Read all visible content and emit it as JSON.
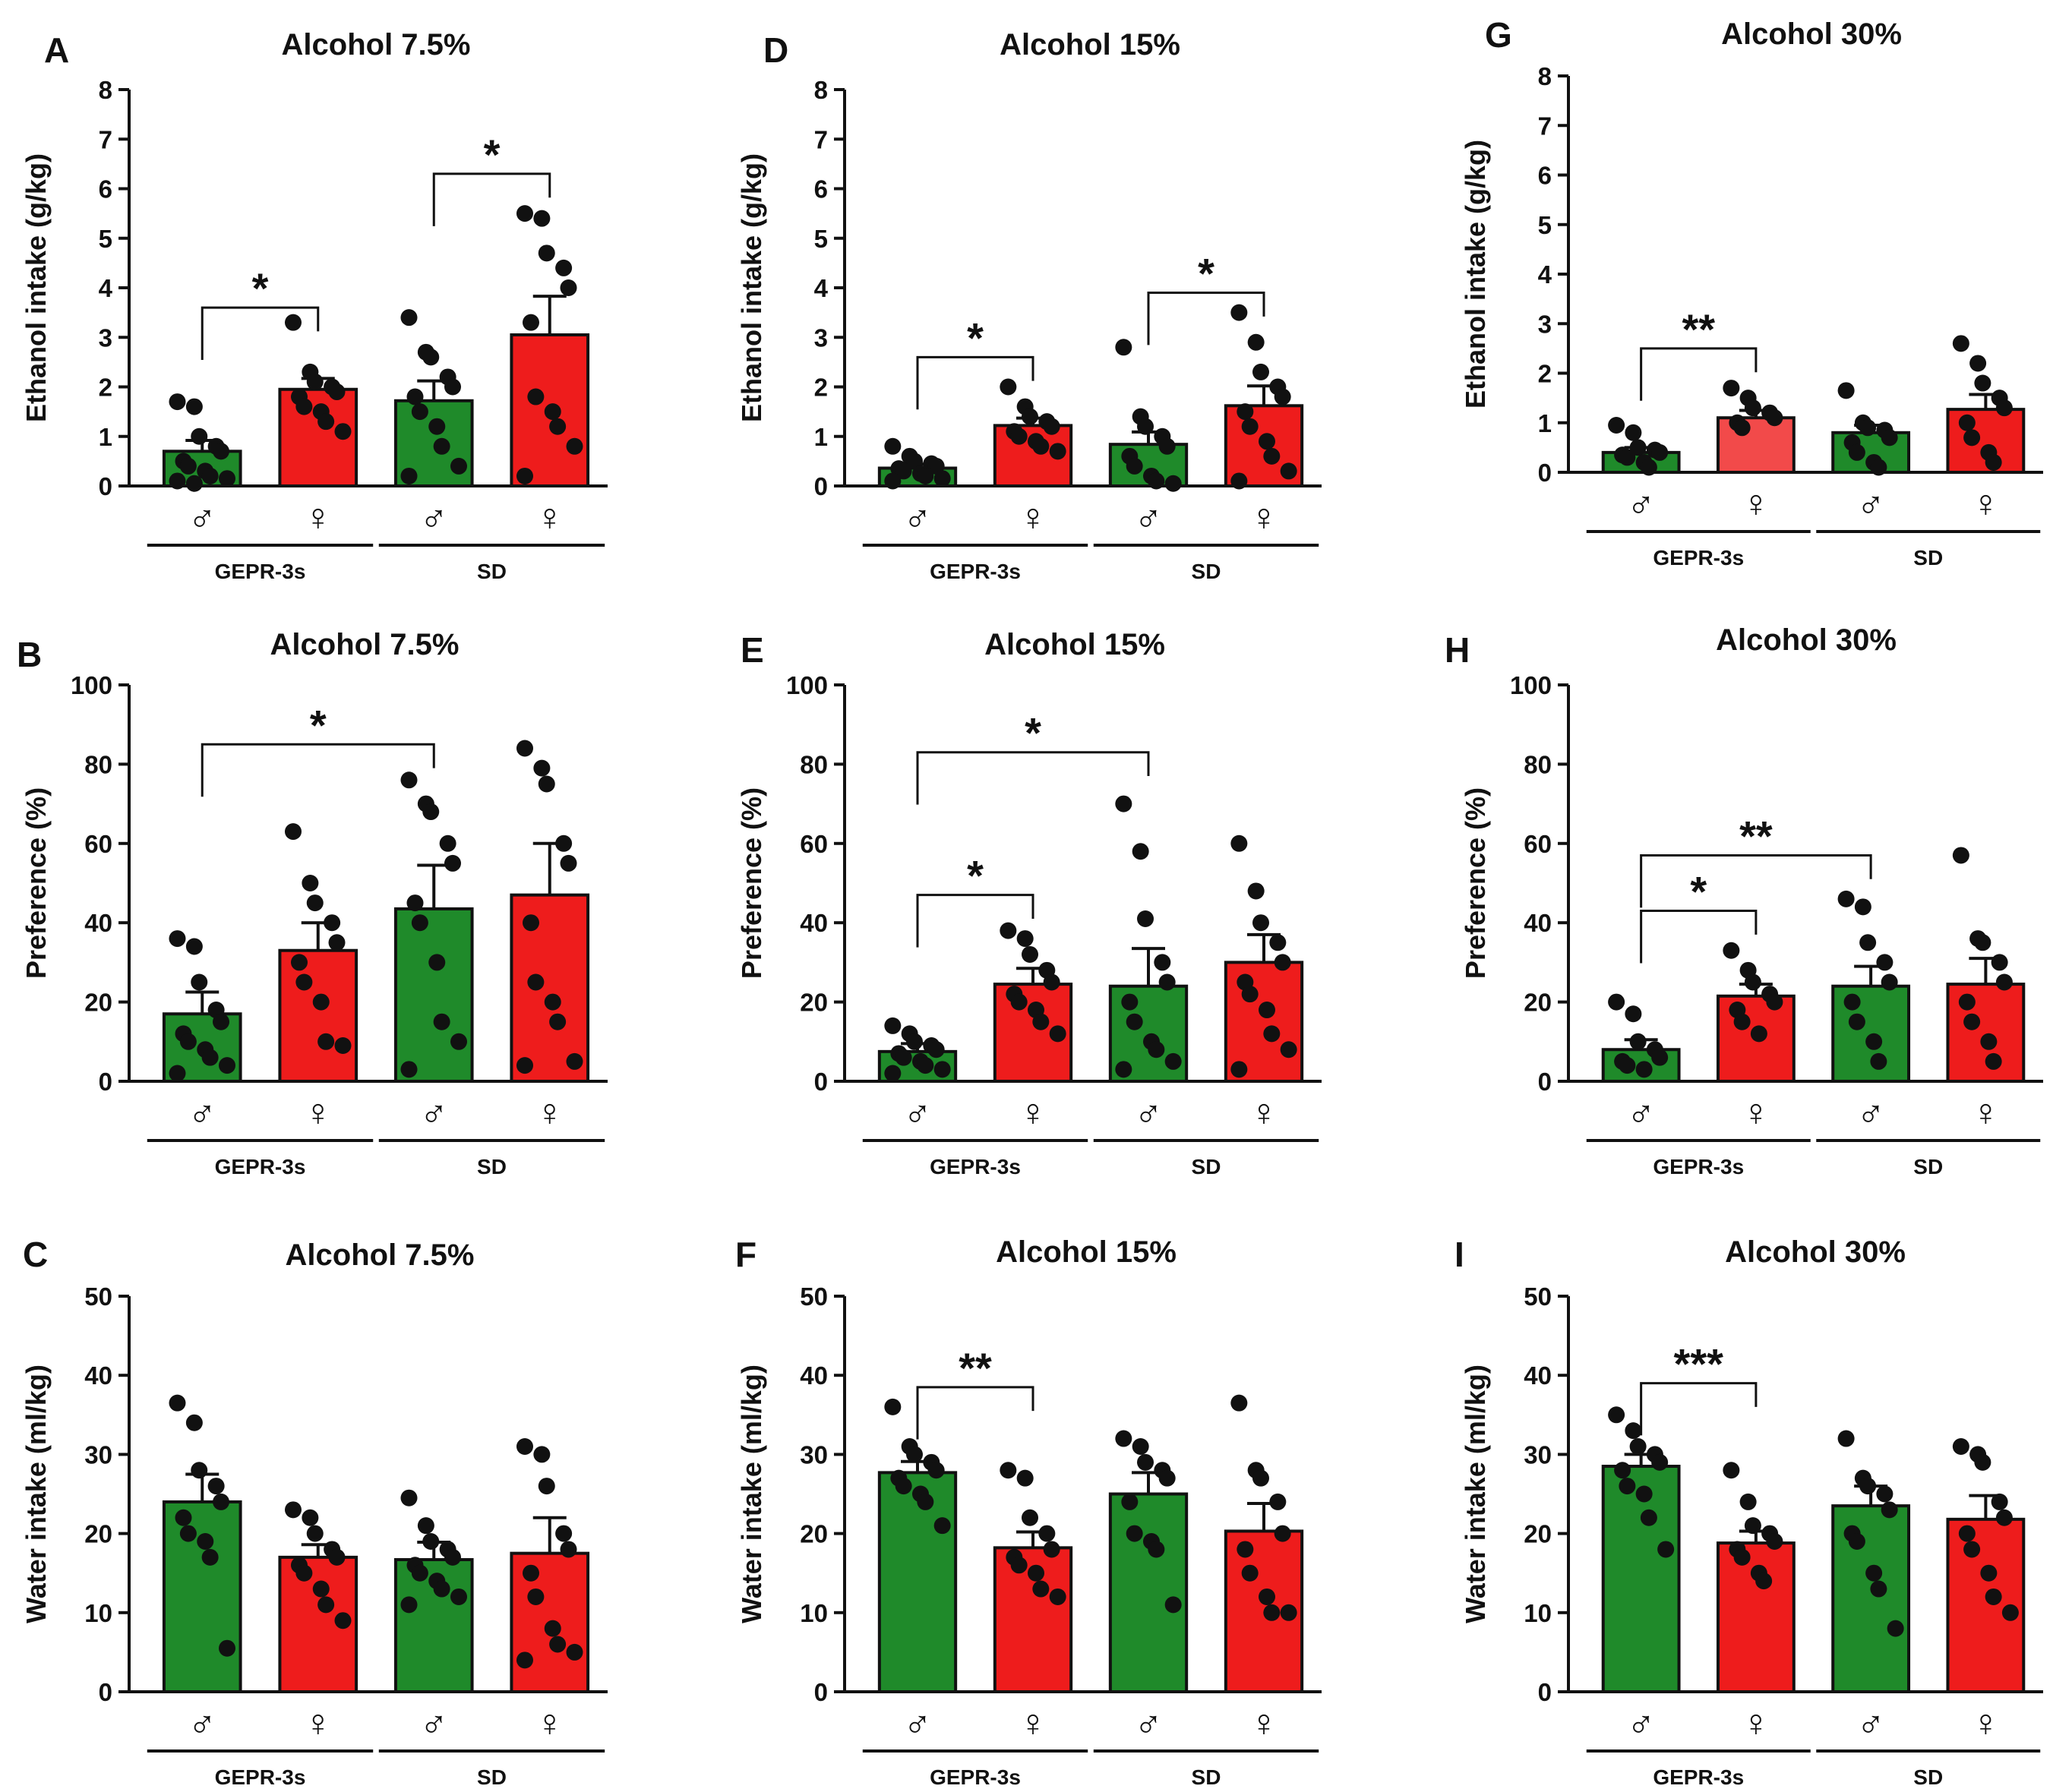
{
  "figure": {
    "symbols": {
      "male": "♂",
      "female": "♀"
    },
    "colors": {
      "male": "#1f8a2a",
      "female": "#ee1c1c",
      "female_light": "#f24a4a",
      "ink": "#111111"
    }
  },
  "chart_data": [
    {
      "id": "A",
      "type": "bar",
      "title": "Alcohol 7.5%",
      "ylabel": "Ethanol intake (g/kg)",
      "ylim": [
        0,
        8
      ],
      "yticks": [
        0,
        1,
        2,
        3,
        4,
        5,
        6,
        7,
        8
      ],
      "categories": [
        "♂",
        "♀",
        "♂",
        "♀"
      ],
      "groups": [
        "GEPR-3s",
        "SD"
      ],
      "values": [
        0.7,
        1.95,
        1.72,
        3.05
      ],
      "sem": [
        0.22,
        0.22,
        0.4,
        0.78
      ],
      "points": [
        [
          1.7,
          1.6,
          1.0,
          0.8,
          0.7,
          0.5,
          0.4,
          0.3,
          0.2,
          0.15,
          0.1,
          0.05
        ],
        [
          3.3,
          2.3,
          2.1,
          2.0,
          1.9,
          1.8,
          1.6,
          1.5,
          1.3,
          1.1
        ],
        [
          3.4,
          2.7,
          2.6,
          2.2,
          2.0,
          1.8,
          1.5,
          1.2,
          0.8,
          0.4,
          0.2
        ],
        [
          5.5,
          5.4,
          4.7,
          4.4,
          4.0,
          3.3,
          1.8,
          1.5,
          1.2,
          0.8,
          0.2
        ]
      ],
      "comparisons": [
        {
          "from": 0,
          "to": 1,
          "y": 3.6,
          "label": "*"
        },
        {
          "from": 2,
          "to": 3,
          "y": 6.3,
          "label": "*"
        }
      ]
    },
    {
      "id": "D",
      "type": "bar",
      "title": "Alcohol 15%",
      "ylabel": "Ethanol intake (g/kg)",
      "ylim": [
        0,
        8
      ],
      "yticks": [
        0,
        1,
        2,
        3,
        4,
        5,
        6,
        7,
        8
      ],
      "categories": [
        "♂",
        "♀",
        "♂",
        "♀"
      ],
      "groups": [
        "GEPR-3s",
        "SD"
      ],
      "values": [
        0.36,
        1.22,
        0.84,
        1.62
      ],
      "sem": [
        0.08,
        0.15,
        0.25,
        0.4
      ],
      "points": [
        [
          0.8,
          0.6,
          0.5,
          0.45,
          0.4,
          0.35,
          0.3,
          0.25,
          0.2,
          0.15,
          0.1
        ],
        [
          2.0,
          1.6,
          1.4,
          1.3,
          1.2,
          1.1,
          1.0,
          0.9,
          0.8,
          0.7
        ],
        [
          2.8,
          1.4,
          1.2,
          1.0,
          0.8,
          0.6,
          0.4,
          0.2,
          0.1,
          0.05
        ],
        [
          3.5,
          2.9,
          2.3,
          2.0,
          1.8,
          1.5,
          1.2,
          0.9,
          0.6,
          0.3,
          0.1
        ]
      ],
      "comparisons": [
        {
          "from": 0,
          "to": 1,
          "y": 2.6,
          "label": "*"
        },
        {
          "from": 2,
          "to": 3,
          "y": 3.9,
          "label": "*"
        }
      ]
    },
    {
      "id": "G",
      "type": "bar",
      "title": "Alcohol 30%",
      "ylabel": "Ethanol intake (g/kg)",
      "ylim": [
        0,
        8
      ],
      "yticks": [
        0,
        1,
        2,
        3,
        4,
        5,
        6,
        7,
        8
      ],
      "categories": [
        "♂",
        "♀",
        "♂",
        "♀"
      ],
      "groups": [
        "GEPR-3s",
        "SD"
      ],
      "values": [
        0.4,
        1.1,
        0.8,
        1.27
      ],
      "sem": [
        0.1,
        0.15,
        0.15,
        0.3
      ],
      "points": [
        [
          0.95,
          0.8,
          0.5,
          0.45,
          0.4,
          0.35,
          0.3,
          0.2,
          0.1
        ],
        [
          1.7,
          1.5,
          1.3,
          1.2,
          1.1,
          1.0,
          0.9
        ],
        [
          1.65,
          1.0,
          0.9,
          0.85,
          0.7,
          0.6,
          0.4,
          0.2,
          0.1
        ],
        [
          2.6,
          2.2,
          1.8,
          1.5,
          1.3,
          1.0,
          0.7,
          0.4,
          0.2
        ]
      ],
      "comparisons": [
        {
          "from": 0,
          "to": 1,
          "y": 2.5,
          "label": "**"
        }
      ]
    },
    {
      "id": "B",
      "type": "bar",
      "title": "Alcohol 7.5%",
      "ylabel": "Preference (%)",
      "ylim": [
        0,
        100
      ],
      "yticks": [
        0,
        20,
        40,
        60,
        80,
        100
      ],
      "categories": [
        "♂",
        "♀",
        "♂",
        "♀"
      ],
      "groups": [
        "GEPR-3s",
        "SD"
      ],
      "values": [
        17,
        33,
        43.5,
        47
      ],
      "sem": [
        5.5,
        7,
        11,
        13
      ],
      "points": [
        [
          36,
          34,
          25,
          18,
          15,
          12,
          10,
          8,
          6,
          4,
          2
        ],
        [
          63,
          50,
          45,
          40,
          35,
          30,
          25,
          20,
          10,
          9
        ],
        [
          76,
          70,
          68,
          60,
          55,
          45,
          40,
          30,
          15,
          10,
          3
        ],
        [
          84,
          79,
          75,
          60,
          55,
          40,
          25,
          20,
          15,
          5,
          4
        ]
      ],
      "comparisons": [
        {
          "from": 0,
          "to": 2,
          "y": 85,
          "label": "*"
        }
      ]
    },
    {
      "id": "E",
      "type": "bar",
      "title": "Alcohol 15%",
      "ylabel": "Preference (%)",
      "ylim": [
        0,
        100
      ],
      "yticks": [
        0,
        20,
        40,
        60,
        80,
        100
      ],
      "categories": [
        "♂",
        "♀",
        "♂",
        "♀"
      ],
      "groups": [
        "GEPR-3s",
        "SD"
      ],
      "values": [
        7.5,
        24.5,
        24,
        30
      ],
      "sem": [
        2,
        4,
        9.5,
        7
      ],
      "points": [
        [
          14,
          12,
          10,
          9,
          8,
          7,
          6,
          5,
          4,
          3,
          2
        ],
        [
          38,
          36,
          32,
          28,
          25,
          22,
          20,
          18,
          15,
          12
        ],
        [
          70,
          58,
          41,
          30,
          25,
          20,
          15,
          10,
          8,
          5,
          3
        ],
        [
          60,
          48,
          40,
          35,
          30,
          25,
          22,
          18,
          12,
          8,
          3
        ]
      ],
      "comparisons": [
        {
          "from": 0,
          "to": 2,
          "y": 83,
          "label": "*"
        },
        {
          "from": 0,
          "to": 1,
          "y": 47,
          "label": "*"
        }
      ]
    },
    {
      "id": "H",
      "type": "bar",
      "title": "Alcohol 30%",
      "ylabel": "Preference (%)",
      "ylim": [
        0,
        100
      ],
      "yticks": [
        0,
        20,
        40,
        60,
        80,
        100
      ],
      "categories": [
        "♂",
        "♀",
        "♂",
        "♀"
      ],
      "groups": [
        "GEPR-3s",
        "SD"
      ],
      "values": [
        8,
        21.5,
        24,
        24.5
      ],
      "sem": [
        2.5,
        3,
        5,
        6.5
      ],
      "points": [
        [
          20,
          17,
          10,
          8,
          6,
          5,
          4,
          3
        ],
        [
          33,
          28,
          25,
          22,
          20,
          18,
          15,
          12
        ],
        [
          46,
          44,
          35,
          30,
          25,
          20,
          15,
          10,
          5
        ],
        [
          57,
          36,
          35,
          30,
          25,
          20,
          15,
          10,
          5
        ]
      ],
      "comparisons": [
        {
          "from": 0,
          "to": 2,
          "y": 57,
          "label": "**"
        },
        {
          "from": 0,
          "to": 1,
          "y": 43,
          "label": "*"
        }
      ]
    },
    {
      "id": "C",
      "type": "bar",
      "title": "Alcohol 7.5%",
      "ylabel": "Water intake (ml/kg)",
      "ylim": [
        0,
        50
      ],
      "yticks": [
        0,
        10,
        20,
        30,
        40,
        50
      ],
      "categories": [
        "♂",
        "♀",
        "♂",
        "♀"
      ],
      "groups": [
        "GEPR-3s",
        "SD"
      ],
      "values": [
        24,
        17,
        16.7,
        17.5
      ],
      "sem": [
        3.5,
        1.6,
        2.2,
        4.5
      ],
      "points": [
        [
          36.5,
          34,
          28,
          26,
          24,
          22,
          20,
          19,
          17,
          5.5
        ],
        [
          23,
          22,
          20,
          18,
          17,
          16,
          15,
          13,
          11,
          9
        ],
        [
          24.5,
          21,
          19,
          18,
          17,
          16,
          15,
          14,
          13,
          12,
          11
        ],
        [
          31,
          30,
          26,
          20,
          18,
          15,
          12,
          8,
          6,
          5,
          4
        ]
      ],
      "comparisons": []
    },
    {
      "id": "F",
      "type": "bar",
      "title": "Alcohol 15%",
      "ylabel": "Water intake (ml/kg)",
      "ylim": [
        0,
        50
      ],
      "yticks": [
        0,
        10,
        20,
        30,
        40,
        50
      ],
      "categories": [
        "♂",
        "♀",
        "♂",
        "♀"
      ],
      "groups": [
        "GEPR-3s",
        "SD"
      ],
      "values": [
        27.7,
        18.2,
        25,
        20.3
      ],
      "sem": [
        1.4,
        2,
        2.7,
        3.5
      ],
      "points": [
        [
          36,
          31,
          30,
          29,
          28,
          27,
          26,
          25,
          24,
          21
        ],
        [
          28,
          27,
          22,
          20,
          18,
          17,
          16,
          15,
          13,
          12
        ],
        [
          32,
          31,
          29,
          28,
          27,
          24,
          20,
          19,
          18,
          11
        ],
        [
          36.5,
          28,
          27,
          24,
          20,
          18,
          15,
          12,
          10,
          10
        ]
      ],
      "comparisons": [
        {
          "from": 0,
          "to": 1,
          "y": 38.5,
          "label": "**"
        }
      ]
    },
    {
      "id": "I",
      "type": "bar",
      "title": "Alcohol 30%",
      "ylabel": "Water intake (ml/kg)",
      "ylim": [
        0,
        50
      ],
      "yticks": [
        0,
        10,
        20,
        30,
        40,
        50
      ],
      "categories": [
        "♂",
        "♀",
        "♂",
        "♀"
      ],
      "groups": [
        "GEPR-3s",
        "SD"
      ],
      "values": [
        28.5,
        18.8,
        23.5,
        21.8
      ],
      "sem": [
        1.5,
        1.5,
        2.5,
        3
      ],
      "points": [
        [
          35,
          33,
          31,
          30,
          29,
          28,
          26,
          25,
          22,
          18
        ],
        [
          28,
          24,
          21,
          20,
          19,
          18,
          17,
          15,
          14
        ],
        [
          32,
          27,
          26,
          25,
          23,
          20,
          19,
          15,
          13,
          8
        ],
        [
          31,
          30,
          29,
          24,
          22,
          20,
          18,
          15,
          12,
          10
        ]
      ],
      "comparisons": [
        {
          "from": 0,
          "to": 1,
          "y": 39,
          "label": "***"
        }
      ]
    }
  ]
}
